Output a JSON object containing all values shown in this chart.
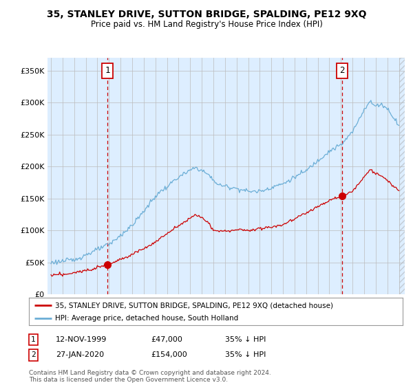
{
  "title": "35, STANLEY DRIVE, SUTTON BRIDGE, SPALDING, PE12 9XQ",
  "subtitle": "Price paid vs. HM Land Registry's House Price Index (HPI)",
  "ylim": [
    0,
    370000
  ],
  "yticks": [
    0,
    50000,
    100000,
    150000,
    200000,
    250000,
    300000,
    350000
  ],
  "ytick_labels": [
    "£0",
    "£50K",
    "£100K",
    "£150K",
    "£200K",
    "£250K",
    "£300K",
    "£350K"
  ],
  "sale1_date": 1999.87,
  "sale1_price": 47000,
  "sale1_label": "1",
  "sale2_date": 2020.08,
  "sale2_price": 154000,
  "sale2_label": "2",
  "hpi_color": "#6baed6",
  "price_color": "#cc0000",
  "dashed_color": "#cc0000",
  "background_color": "#ffffff",
  "chart_bg_color": "#ddeeff",
  "grid_color": "#cccccc",
  "legend_label_price": "35, STANLEY DRIVE, SUTTON BRIDGE, SPALDING, PE12 9XQ (detached house)",
  "legend_label_hpi": "HPI: Average price, detached house, South Holland",
  "table_row1": [
    "1",
    "12-NOV-1999",
    "£47,000",
    "35% ↓ HPI"
  ],
  "table_row2": [
    "2",
    "27-JAN-2020",
    "£154,000",
    "35% ↓ HPI"
  ],
  "footnote": "Contains HM Land Registry data © Crown copyright and database right 2024.\nThis data is licensed under the Open Government Licence v3.0.",
  "xmin": 1994.7,
  "xmax": 2025.5,
  "data_end": 2025.0
}
